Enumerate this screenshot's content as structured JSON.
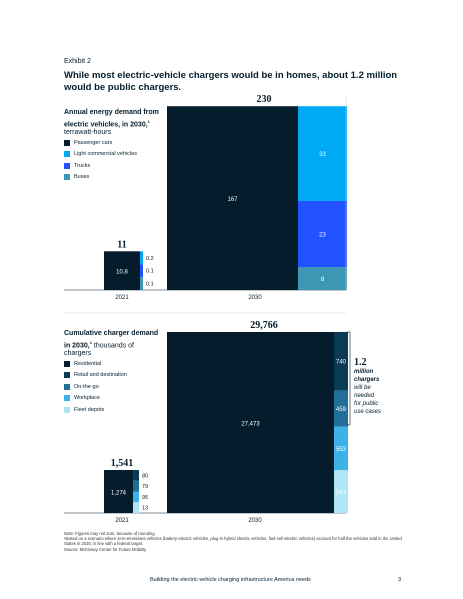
{
  "exhibit_label": "Exhibit 2",
  "headline": "While most electric-vehicle chargers would be in homes, about 1.2 million would be public chargers.",
  "chart_data": [
    {
      "type": "bar",
      "stacked": true,
      "title": "Annual energy demand from electric vehicles, in 2030,",
      "title_note": "1",
      "unit": "terrawatt-hours",
      "categories": [
        "2021",
        "2030"
      ],
      "totals": [
        "11",
        "230"
      ],
      "series": [
        {
          "name": "Passenger cars",
          "color": "#051c2c",
          "values": [
            10.8,
            167
          ],
          "labels": [
            "10.8",
            "167"
          ]
        },
        {
          "name": "Light commercial vehicles",
          "color": "#00a9f4",
          "values": [
            0.2,
            33
          ],
          "labels": [
            "0.2",
            "33"
          ]
        },
        {
          "name": "Trucks",
          "color": "#2251ff",
          "values": [
            0.1,
            23
          ],
          "labels": [
            "0.1",
            "23"
          ]
        },
        {
          "name": "Buses",
          "color": "#3c96b4",
          "values": [
            0.1,
            8
          ],
          "labels": [
            "0.1",
            "8"
          ]
        }
      ]
    },
    {
      "type": "bar",
      "stacked": true,
      "title": "Cumulative charger demand in 2030,",
      "title_note": "1",
      "unit": "thousands of chargers",
      "categories": [
        "2021",
        "2030"
      ],
      "totals": [
        "1,541",
        "29,766"
      ],
      "series": [
        {
          "name": "Residential",
          "color": "#051c2c",
          "values": [
            1274,
            27473
          ],
          "labels": [
            "1,274",
            "27,473"
          ]
        },
        {
          "name": "Retail and destination",
          "color": "#0b3a55",
          "values": [
            80,
            740
          ],
          "labels": [
            "80",
            "740"
          ]
        },
        {
          "name": "On-the-go",
          "color": "#1f6f98",
          "values": [
            79,
            459
          ],
          "labels": [
            "79",
            "459"
          ]
        },
        {
          "name": "Workplace",
          "color": "#3cb3e8",
          "values": [
            95,
            553
          ],
          "labels": [
            "95",
            "553"
          ]
        },
        {
          "name": "Fleet depots",
          "color": "#afe5f5",
          "values": [
            13,
            541
          ],
          "labels": [
            "13",
            "541"
          ]
        }
      ],
      "annotation": {
        "value": "1.2",
        "line1": "million",
        "line2": "chargers",
        "rest": [
          "will be",
          "needed",
          "for public",
          "use cases"
        ]
      }
    }
  ],
  "footnotes": {
    "note": "Note: Figures may not sum, because of rounding.",
    "note1": "¹Based on a scenario where zero-emissions vehicles (battery-electric vehicles, plug-in hybrid electric vehicles, fuel-cell electric vehicles) account for half the vehicles sold in the United States in 2030, in line with a federal target.",
    "source": "Source: McKinsey Center for Future Mobility"
  },
  "footer": {
    "title": "Building the electric-vehicle charging infrastructure America needs",
    "page": "3"
  }
}
